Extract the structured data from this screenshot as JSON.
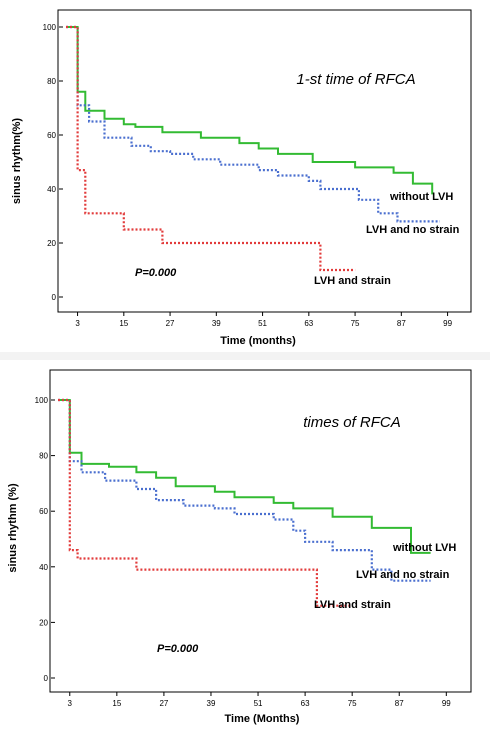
{
  "chart_data": [
    {
      "type": "line",
      "step": true,
      "title": "1-st time of RFCA",
      "xlabel": "Time (months)",
      "ylabel": "sinus rhythm(%)",
      "xlim": [
        0,
        103
      ],
      "ylim": [
        0,
        100
      ],
      "x_ticks": [
        3,
        15,
        27,
        39,
        51,
        63,
        75,
        87,
        99
      ],
      "y_ticks": [
        0,
        20,
        40,
        60,
        80,
        100
      ],
      "grid": false,
      "annotations": [
        "P=0.000"
      ],
      "series": [
        {
          "name": "without LVH",
          "color": "#33bb33",
          "dash": "solid",
          "x": [
            0,
            2.5,
            3,
            5,
            10,
            15,
            18,
            25,
            35,
            45,
            50,
            55,
            64,
            75,
            85,
            90,
            95
          ],
          "y": [
            100,
            100,
            76,
            69,
            66,
            64,
            63,
            61,
            59,
            57,
            55,
            53,
            50,
            48,
            46,
            42,
            38
          ]
        },
        {
          "name": "LVH and no strain",
          "color": "#4a6fcf",
          "dash": "dotted",
          "x": [
            0,
            2.5,
            3,
            6,
            10,
            17,
            22,
            27,
            33,
            40,
            50,
            55,
            63,
            66,
            76,
            81,
            86,
            92,
            97
          ],
          "y": [
            100,
            100,
            71,
            65,
            59,
            56,
            54,
            53,
            51,
            49,
            47,
            45,
            43,
            40,
            36,
            31,
            28,
            28,
            28
          ]
        },
        {
          "name": "LVH and strain",
          "color": "#e23b3b",
          "dash": "dotted",
          "x": [
            0,
            2.5,
            3,
            5,
            15,
            25,
            38,
            50,
            65,
            66,
            75
          ],
          "y": [
            100,
            100,
            47,
            31,
            25,
            20,
            20,
            20,
            20,
            10,
            10
          ]
        }
      ]
    },
    {
      "type": "line",
      "step": true,
      "title": "times of RFCA",
      "xlabel": "Time (Months)",
      "ylabel": "sinus rhythm (%)",
      "xlim": [
        0,
        103
      ],
      "ylim": [
        0,
        100
      ],
      "x_ticks": [
        3,
        15,
        27,
        39,
        51,
        63,
        75,
        87,
        99
      ],
      "y_ticks": [
        0,
        20,
        40,
        60,
        80,
        100
      ],
      "grid": false,
      "annotations": [
        "P=0.000"
      ],
      "series": [
        {
          "name": "without LVH",
          "color": "#33bb33",
          "dash": "solid",
          "x": [
            0,
            2.5,
            3,
            6,
            13,
            20,
            25,
            30,
            40,
            45,
            55,
            60,
            65,
            70,
            80,
            90,
            95
          ],
          "y": [
            100,
            100,
            81,
            77,
            76,
            74,
            72,
            69,
            67,
            65,
            63,
            61,
            61,
            58,
            54,
            45,
            45
          ]
        },
        {
          "name": "LVH and no strain",
          "color": "#4a6fcf",
          "dash": "dotted",
          "x": [
            0,
            2.5,
            3,
            6,
            12,
            20,
            25,
            32,
            40,
            45,
            55,
            60,
            63,
            70,
            78,
            80,
            85,
            95
          ],
          "y": [
            100,
            100,
            78,
            74,
            71,
            68,
            64,
            62,
            61,
            59,
            57,
            53,
            49,
            46,
            46,
            39,
            35,
            35
          ]
        },
        {
          "name": "LVH and strain",
          "color": "#e23b3b",
          "dash": "dotted",
          "x": [
            0,
            2.5,
            3,
            5,
            15,
            20,
            50,
            65,
            66,
            75
          ],
          "y": [
            100,
            100,
            46,
            43,
            43,
            39,
            39,
            39,
            26,
            26
          ]
        }
      ]
    }
  ]
}
